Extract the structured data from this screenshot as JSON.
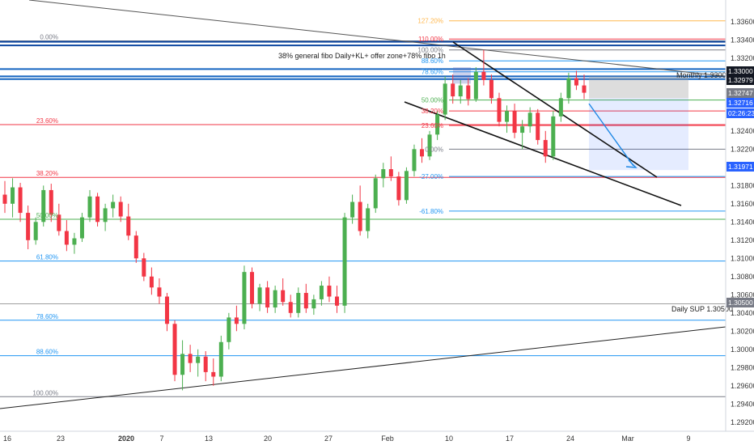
{
  "chart_data": {
    "type": "candlestick",
    "pair_timeframe_hidden": "",
    "annotations": {
      "note": "38% general fibo Daily+KL+ offer zone+78% fibo 1h",
      "monthly": "Monthly 1.33000",
      "daily_sup": "Daily SUP 1.30500"
    },
    "y_axis": {
      "min": 1.291,
      "max": 1.3375,
      "ticks": [
        "1.33600",
        "1.33400",
        "1.33200",
        "1.33000",
        "1.32800",
        "1.32600",
        "1.32400",
        "1.32200",
        "1.32000",
        "1.31800",
        "1.31600",
        "1.31400",
        "1.31200",
        "1.31000",
        "1.30800",
        "1.30600",
        "1.30400",
        "1.30200",
        "1.30000",
        "1.29800",
        "1.29600",
        "1.29400",
        "1.29200"
      ]
    },
    "x_axis": {
      "ticks": [
        "16",
        "23",
        "2020",
        "7",
        "13",
        "20",
        "27",
        "Feb",
        "10",
        "17",
        "24",
        "Mar",
        "9"
      ]
    },
    "price_tags": [
      {
        "label": "1.33000",
        "color": "#131722"
      },
      {
        "label": "1.32979",
        "color": "#131722"
      },
      {
        "label": "1.32747",
        "color": "#787b86"
      },
      {
        "label": "1.32716",
        "color": "#2962ff"
      },
      {
        "label": "02:26:23",
        "color": "#2962ff"
      },
      {
        "label": "1.31971",
        "color": "#2962ff"
      },
      {
        "label": "1.30500",
        "color": "#787b86"
      }
    ],
    "daily_fib": [
      {
        "label": "0.00%",
        "price": 1.3339,
        "color": "#787b86"
      },
      {
        "label": "23.60%",
        "price": 1.3247,
        "color": "#f23645"
      },
      {
        "label": "38.20%",
        "price": 1.3189,
        "color": "#f23645"
      },
      {
        "label": "50.00%",
        "price": 1.3143,
        "color": "#4caf50"
      },
      {
        "label": "61.80%",
        "price": 1.3097,
        "color": "#2196f3"
      },
      {
        "label": "78.60%",
        "price": 1.3032,
        "color": "#2196f3"
      },
      {
        "label": "88.60%",
        "price": 1.2993,
        "color": "#2196f3"
      },
      {
        "label": "100.00%",
        "price": 1.2948,
        "color": "#787b86"
      }
    ],
    "hourly_fib": [
      {
        "label": "127.20%",
        "price": 1.3361,
        "color": "#ffb74d"
      },
      {
        "label": "110.00%",
        "price": 1.3341,
        "color": "#f23645"
      },
      {
        "label": "100.00%",
        "price": 1.3329,
        "color": "#787b86"
      },
      {
        "label": "88.60%",
        "price": 1.3317,
        "color": "#2196f3"
      },
      {
        "label": "78.60%",
        "price": 1.3305,
        "color": "#2196f3"
      },
      {
        "label": "50.00%",
        "price": 1.3274,
        "color": "#4caf50"
      },
      {
        "label": "38.20%",
        "price": 1.3262,
        "color": "#f23645"
      },
      {
        "label": "23.60%",
        "price": 1.3246,
        "color": "#f23645"
      },
      {
        "label": "0.00%",
        "price": 1.322,
        "color": "#787b86"
      },
      {
        "label": "-27.00%",
        "price": 1.319,
        "color": "#2196f3"
      },
      {
        "label": "-61.80%",
        "price": 1.3152,
        "color": "#2196f3"
      }
    ],
    "blue_levels": [
      1.3338,
      1.3334,
      1.3308,
      1.33,
      1.3297
    ],
    "up_color": "#26a69a",
    "candle_up": "#4caf50",
    "candle_down": "#f23645",
    "ohlc": [
      [
        1.317,
        1.3185,
        1.315,
        1.316
      ],
      [
        1.316,
        1.3188,
        1.3145,
        1.3178
      ],
      [
        1.3178,
        1.3183,
        1.314,
        1.315
      ],
      [
        1.315,
        1.3158,
        1.311,
        1.312
      ],
      [
        1.312,
        1.3145,
        1.3115,
        1.314
      ],
      [
        1.314,
        1.318,
        1.3135,
        1.3175
      ],
      [
        1.3175,
        1.3182,
        1.314,
        1.3148
      ],
      [
        1.3148,
        1.316,
        1.3125,
        1.313
      ],
      [
        1.313,
        1.3142,
        1.3108,
        1.3115
      ],
      [
        1.3115,
        1.3128,
        1.3105,
        1.3122
      ],
      [
        1.3122,
        1.315,
        1.3118,
        1.3145
      ],
      [
        1.3145,
        1.3175,
        1.314,
        1.3168
      ],
      [
        1.3168,
        1.3172,
        1.3135,
        1.314
      ],
      [
        1.314,
        1.316,
        1.313,
        1.3155
      ],
      [
        1.3155,
        1.317,
        1.3145,
        1.3162
      ],
      [
        1.3162,
        1.3168,
        1.314,
        1.3146
      ],
      [
        1.3146,
        1.316,
        1.312,
        1.3125
      ],
      [
        1.3125,
        1.313,
        1.3095,
        1.31
      ],
      [
        1.31,
        1.3106,
        1.3075,
        1.308
      ],
      [
        1.308,
        1.309,
        1.306,
        1.3068
      ],
      [
        1.3068,
        1.3078,
        1.305,
        1.3058
      ],
      [
        1.3058,
        1.3062,
        1.302,
        1.3028
      ],
      [
        1.3028,
        1.3032,
        1.2965,
        1.2972
      ],
      [
        1.2972,
        1.301,
        1.2955,
        1.2995
      ],
      [
        1.2995,
        1.3005,
        1.2975,
        1.2985
      ],
      [
        1.2985,
        1.3,
        1.297,
        1.2992
      ],
      [
        1.2992,
        1.2998,
        1.2965,
        1.2975
      ],
      [
        1.2975,
        1.299,
        1.296,
        1.297
      ],
      [
        1.297,
        1.3015,
        1.2965,
        1.3008
      ],
      [
        1.3008,
        1.304,
        1.3,
        1.3035
      ],
      [
        1.3035,
        1.3048,
        1.302,
        1.3028
      ],
      [
        1.3028,
        1.3092,
        1.3022,
        1.3085
      ],
      [
        1.3085,
        1.309,
        1.3045,
        1.305
      ],
      [
        1.305,
        1.3072,
        1.3042,
        1.3068
      ],
      [
        1.3068,
        1.3075,
        1.304,
        1.3046
      ],
      [
        1.3046,
        1.307,
        1.304,
        1.3065
      ],
      [
        1.3065,
        1.3078,
        1.3048,
        1.3052
      ],
      [
        1.3052,
        1.306,
        1.3035,
        1.304
      ],
      [
        1.304,
        1.3068,
        1.3035,
        1.3062
      ],
      [
        1.3062,
        1.3072,
        1.304,
        1.3045
      ],
      [
        1.3045,
        1.306,
        1.3038,
        1.3055
      ],
      [
        1.3055,
        1.3075,
        1.3048,
        1.307
      ],
      [
        1.307,
        1.308,
        1.3052,
        1.3058
      ],
      [
        1.3058,
        1.307,
        1.304,
        1.3048
      ],
      [
        1.3048,
        1.315,
        1.304,
        1.3145
      ],
      [
        1.3145,
        1.317,
        1.3138,
        1.3162
      ],
      [
        1.3162,
        1.318,
        1.3125,
        1.313
      ],
      [
        1.313,
        1.316,
        1.3122,
        1.3155
      ],
      [
        1.3155,
        1.3192,
        1.315,
        1.3188
      ],
      [
        1.3188,
        1.3205,
        1.3178,
        1.3198
      ],
      [
        1.3198,
        1.3212,
        1.3185,
        1.319
      ],
      [
        1.319,
        1.3195,
        1.3158,
        1.3164
      ],
      [
        1.3164,
        1.32,
        1.316,
        1.3196
      ],
      [
        1.3196,
        1.3225,
        1.319,
        1.322
      ],
      [
        1.322,
        1.3232,
        1.3205,
        1.3212
      ],
      [
        1.3212,
        1.324,
        1.3208,
        1.3236
      ],
      [
        1.3236,
        1.3262,
        1.323,
        1.3258
      ],
      [
        1.3258,
        1.33,
        1.3252,
        1.3292
      ],
      [
        1.3292,
        1.3302,
        1.327,
        1.3278
      ],
      [
        1.3278,
        1.3296,
        1.327,
        1.329
      ],
      [
        1.329,
        1.3298,
        1.3268,
        1.3275
      ],
      [
        1.3275,
        1.331,
        1.3272,
        1.3305
      ],
      [
        1.3305,
        1.3329,
        1.329,
        1.3296
      ],
      [
        1.3296,
        1.3302,
        1.327,
        1.3276
      ],
      [
        1.3276,
        1.3282,
        1.3245,
        1.325
      ],
      [
        1.325,
        1.3268,
        1.3238,
        1.3262
      ],
      [
        1.3262,
        1.327,
        1.3232,
        1.3238
      ],
      [
        1.3238,
        1.3252,
        1.322,
        1.3245
      ],
      [
        1.3245,
        1.3266,
        1.3238,
        1.326
      ],
      [
        1.326,
        1.3264,
        1.3225,
        1.323
      ],
      [
        1.323,
        1.324,
        1.3205,
        1.3212
      ],
      [
        1.3212,
        1.3262,
        1.3208,
        1.3256
      ],
      [
        1.3256,
        1.3282,
        1.325,
        1.3276
      ],
      [
        1.3276,
        1.3304,
        1.327,
        1.3298
      ],
      [
        1.3298,
        1.3306,
        1.3285,
        1.329
      ],
      [
        1.329,
        1.3302,
        1.3275,
        1.3282
      ]
    ],
    "ohlc_dates_hidden": ""
  }
}
